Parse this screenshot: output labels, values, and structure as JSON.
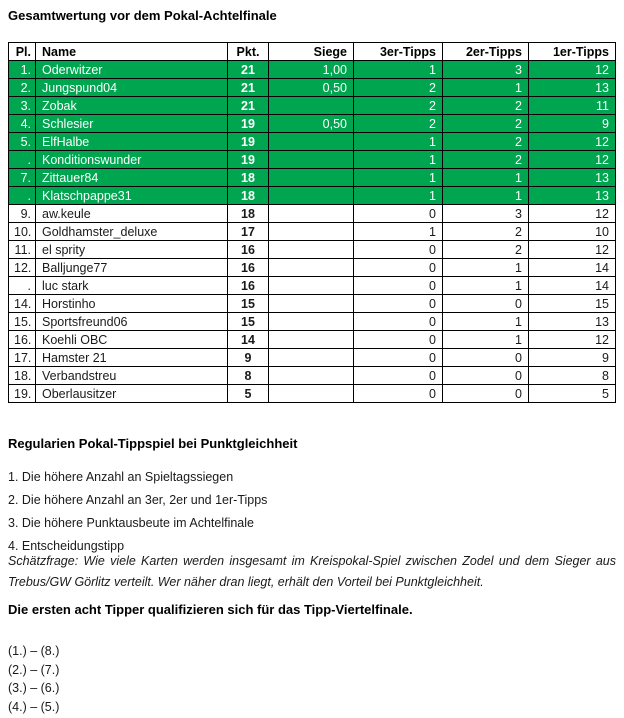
{
  "title": "Gesamtwertung vor dem Pokal-Achtelfinale",
  "table": {
    "columns": [
      "Pl.",
      "Name",
      "Pkt.",
      "Siege",
      "3er-Tipps",
      "2er-Tipps",
      "1er-Tipps"
    ],
    "highlight_color": "#00A54F",
    "rows": [
      {
        "cells": [
          "1.",
          "Oderwitzer",
          "21",
          "1,00",
          "1",
          "3",
          "12"
        ],
        "highlighted": true
      },
      {
        "cells": [
          "2.",
          "Jungspund04",
          "21",
          "0,50",
          "2",
          "1",
          "13"
        ],
        "highlighted": true
      },
      {
        "cells": [
          "3.",
          "Zobak",
          "21",
          "",
          "2",
          "2",
          "11"
        ],
        "highlighted": true
      },
      {
        "cells": [
          "4.",
          "Schlesier",
          "19",
          "0,50",
          "2",
          "2",
          "9"
        ],
        "highlighted": true
      },
      {
        "cells": [
          "5.",
          "ElfHalbe",
          "19",
          "",
          "1",
          "2",
          "12"
        ],
        "highlighted": true
      },
      {
        "cells": [
          ".",
          "Konditionswunder",
          "19",
          "",
          "1",
          "2",
          "12"
        ],
        "highlighted": true
      },
      {
        "cells": [
          "7.",
          "Zittauer84",
          "18",
          "",
          "1",
          "1",
          "13"
        ],
        "highlighted": true
      },
      {
        "cells": [
          ".",
          "Klatschpappe31",
          "18",
          "",
          "1",
          "1",
          "13"
        ],
        "highlighted": true
      },
      {
        "cells": [
          "9.",
          "aw.keule",
          "18",
          "",
          "0",
          "3",
          "12"
        ],
        "highlighted": false
      },
      {
        "cells": [
          "10.",
          "Goldhamster_deluxe",
          "17",
          "",
          "1",
          "2",
          "10"
        ],
        "highlighted": false
      },
      {
        "cells": [
          "11.",
          "el sprity",
          "16",
          "",
          "0",
          "2",
          "12"
        ],
        "highlighted": false
      },
      {
        "cells": [
          "12.",
          "Balljunge77",
          "16",
          "",
          "0",
          "1",
          "14"
        ],
        "highlighted": false
      },
      {
        "cells": [
          ".",
          "luc stark",
          "16",
          "",
          "0",
          "1",
          "14"
        ],
        "highlighted": false
      },
      {
        "cells": [
          "14.",
          "Horstinho",
          "15",
          "",
          "0",
          "0",
          "15"
        ],
        "highlighted": false
      },
      {
        "cells": [
          "15.",
          "Sportsfreund06",
          "15",
          "",
          "0",
          "1",
          "13"
        ],
        "highlighted": false
      },
      {
        "cells": [
          "16.",
          "Koehli OBC",
          "14",
          "",
          "0",
          "1",
          "12"
        ],
        "highlighted": false
      },
      {
        "cells": [
          "17.",
          "Hamster 21",
          "9",
          "",
          "0",
          "0",
          "9"
        ],
        "highlighted": false
      },
      {
        "cells": [
          "18.",
          "Verbandstreu",
          "8",
          "",
          "0",
          "0",
          "8"
        ],
        "highlighted": false
      },
      {
        "cells": [
          "19.",
          "Oberlausitzer",
          "5",
          "",
          "0",
          "0",
          "5"
        ],
        "highlighted": false
      }
    ]
  },
  "rules": {
    "heading": "Regularien Pokal-Tippspiel bei Punktgleichheit",
    "items": [
      "1. Die höhere Anzahl an Spieltagssiegen",
      "2. Die höhere Anzahl an 3er, 2er und 1er-Tipps",
      "3. Die höhere Punktausbeute im Achtelfinale",
      "4. Entscheidungstipp"
    ],
    "tiebreaker_question": "Schätzfrage: Wie viele Karten werden insgesamt im Kreispokal-Spiel zwischen Zodel und dem Sieger aus Trebus/GW Görlitz verteilt. Wer näher dran liegt, erhält den Vorteil bei Punktgleichheit."
  },
  "qualification_note": "Die ersten acht Tipper qualifizieren sich für das Tipp-Viertelfinale.",
  "pairings": [
    "(1.) – (8.)",
    "(2.) – (7.)",
    "(3.) – (6.)",
    "(4.) – (5.)"
  ]
}
